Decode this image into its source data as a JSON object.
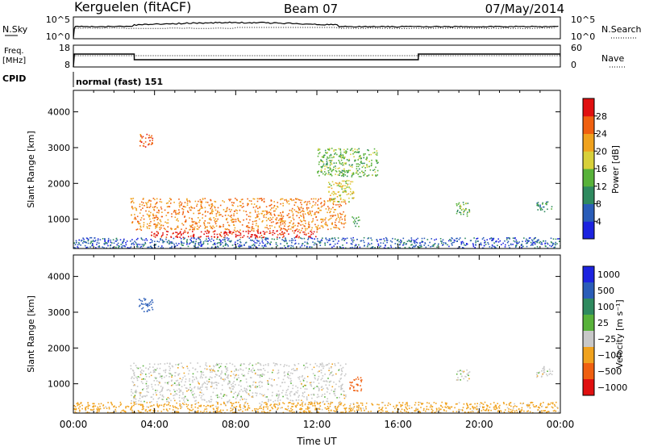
{
  "header": {
    "station": "Kerguelen (fitACF)",
    "beam": "Beam 07",
    "date": "07/May/2014"
  },
  "summary_panels": {
    "nsky": {
      "label": "N.Sky",
      "ticks_left": [
        "10^5",
        "10^0"
      ],
      "ticks_right": [
        "10^5",
        "10^0"
      ],
      "right_label": "N.Search",
      "right_line": "dotted"
    },
    "freq": {
      "label_line1": "Freq.",
      "label_line2": "[MHz]",
      "ticks_left": [
        "18",
        "8"
      ],
      "ticks_right": [
        "60",
        "0"
      ],
      "right_label": "Nave",
      "right_line": "dotted"
    },
    "cpid": {
      "label": "CPID",
      "text": "normal (fast) 151"
    }
  },
  "chart_data": [
    {
      "type": "heatmap",
      "panel": "power",
      "ylabel": "Slant Range [km]",
      "xlabel": "",
      "xlim": [
        0,
        24
      ],
      "ylim": [
        180,
        4600
      ],
      "y_ticks": [
        1000,
        2000,
        3000,
        4000
      ],
      "x_ticks": [
        0,
        4,
        8,
        12,
        16,
        20,
        24
      ],
      "colorbar": {
        "label": "Power [dB]",
        "ticks": [
          4,
          8,
          12,
          16,
          20,
          24,
          28
        ],
        "range": [
          0,
          32
        ],
        "colors": [
          "#1c23e0",
          "#2a5db8",
          "#2f8a5f",
          "#58b23a",
          "#d8d03a",
          "#f0a21e",
          "#f06010",
          "#e01010"
        ]
      },
      "regions": [
        {
          "t": [
            2.8,
            13.4
          ],
          "r": [
            700,
            1600
          ],
          "value": 24
        },
        {
          "t": [
            3.8,
            12.0
          ],
          "r": [
            500,
            700
          ],
          "value": 30
        },
        {
          "t": [
            3.2,
            3.9
          ],
          "r": [
            3000,
            3400
          ],
          "value": 26
        },
        {
          "t": [
            12.5,
            13.8
          ],
          "r": [
            1500,
            2100
          ],
          "value": 18
        },
        {
          "t": [
            13.7,
            14.1
          ],
          "r": [
            800,
            1100
          ],
          "value": 12
        },
        {
          "t": [
            0.0,
            24.0
          ],
          "r": [
            200,
            500
          ],
          "value": 6
        },
        {
          "t": [
            18.8,
            19.5
          ],
          "r": [
            1100,
            1500
          ],
          "value": 14
        },
        {
          "t": [
            22.8,
            23.6
          ],
          "r": [
            1200,
            1500
          ],
          "value": 10
        },
        {
          "t": [
            12.0,
            15.0
          ],
          "r": [
            2200,
            3000
          ],
          "value": 14
        }
      ]
    },
    {
      "type": "heatmap",
      "panel": "velocity",
      "ylabel": "Slant Range [km]",
      "xlabel": "Time UT",
      "xlim": [
        0,
        24
      ],
      "ylim": [
        180,
        4600
      ],
      "y_ticks": [
        1000,
        2000,
        3000,
        4000
      ],
      "x_ticks": [
        0,
        4,
        8,
        12,
        16,
        20,
        24
      ],
      "x_tick_labels": [
        "00:00",
        "04:00",
        "08:00",
        "12:00",
        "16:00",
        "20:00",
        "00:00"
      ],
      "colorbar": {
        "label": "Velocity [m s⁻¹]",
        "ticks": [
          "1000",
          "500",
          "100",
          "25",
          "−25",
          "−100",
          "−500",
          "−1000"
        ],
        "colors": [
          "#1c23e0",
          "#2a5db8",
          "#2f8a5f",
          "#58b23a",
          "#c8c8c8",
          "#f0a21e",
          "#f06010",
          "#e01010"
        ]
      },
      "regions": [
        {
          "t": [
            2.8,
            13.4
          ],
          "r": [
            500,
            1600
          ],
          "value": 0
        },
        {
          "t": [
            3.2,
            3.9
          ],
          "r": [
            3000,
            3400
          ],
          "value": 150
        },
        {
          "t": [
            13.6,
            14.2
          ],
          "r": [
            800,
            1200
          ],
          "value": -150
        },
        {
          "t": [
            0.0,
            24.0
          ],
          "r": [
            200,
            500
          ],
          "value": -50
        },
        {
          "t": [
            18.8,
            19.5
          ],
          "r": [
            1100,
            1400
          ],
          "value": 0
        },
        {
          "t": [
            22.8,
            23.6
          ],
          "r": [
            1200,
            1500
          ],
          "value": 0
        }
      ]
    }
  ]
}
